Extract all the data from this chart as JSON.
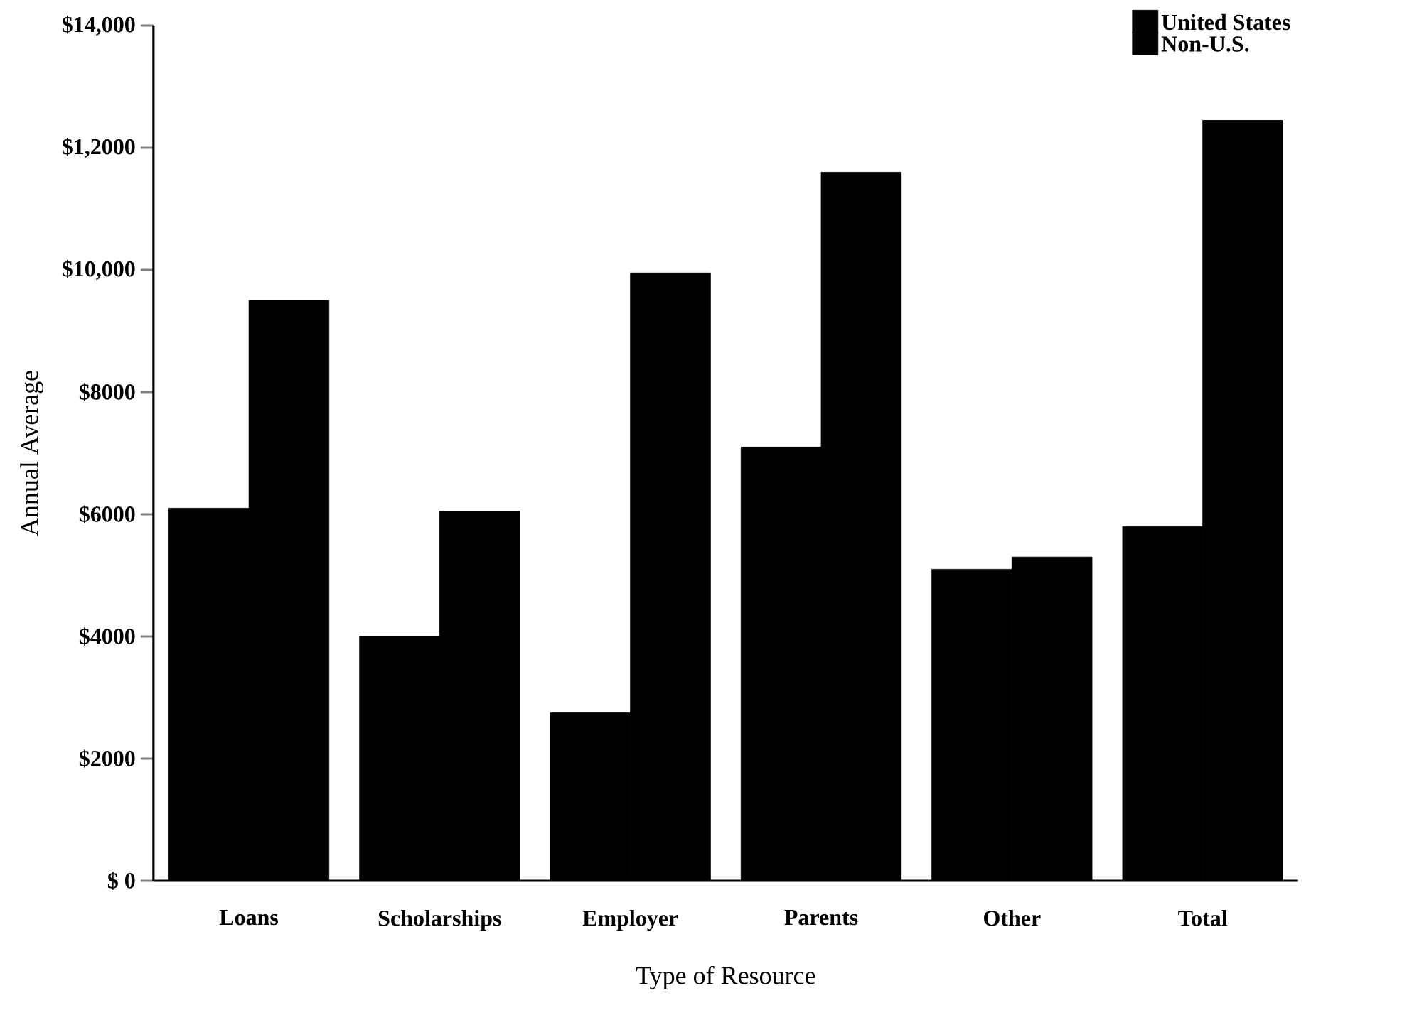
{
  "chart_data": {
    "type": "bar",
    "xlabel": "Type of Resource",
    "ylabel": "Annual Average",
    "categories": [
      "Loans",
      "Scholarships",
      "Employer",
      "Parents",
      "Other",
      "Total"
    ],
    "series": [
      {
        "name": "United States",
        "color": "#000000",
        "values": [
          6100,
          4000,
          2750,
          7100,
          5100,
          5800
        ]
      },
      {
        "name": "Non-U.S.",
        "color": "#000000",
        "values": [
          9500,
          6050,
          9950,
          11600,
          5300,
          12450
        ]
      }
    ],
    "ylim": [
      0,
      14000
    ],
    "yticks": [
      {
        "value": 0,
        "label": "$ 0"
      },
      {
        "value": 2000,
        "label": "$2000"
      },
      {
        "value": 4000,
        "label": "$4000"
      },
      {
        "value": 6000,
        "label": "$6000"
      },
      {
        "value": 8000,
        "label": "$8000"
      },
      {
        "value": 10000,
        "label": "$10,000"
      },
      {
        "value": 12000,
        "label": "$1,2000"
      },
      {
        "value": 14000,
        "label": "$14,000"
      }
    ],
    "legend": "top right"
  }
}
